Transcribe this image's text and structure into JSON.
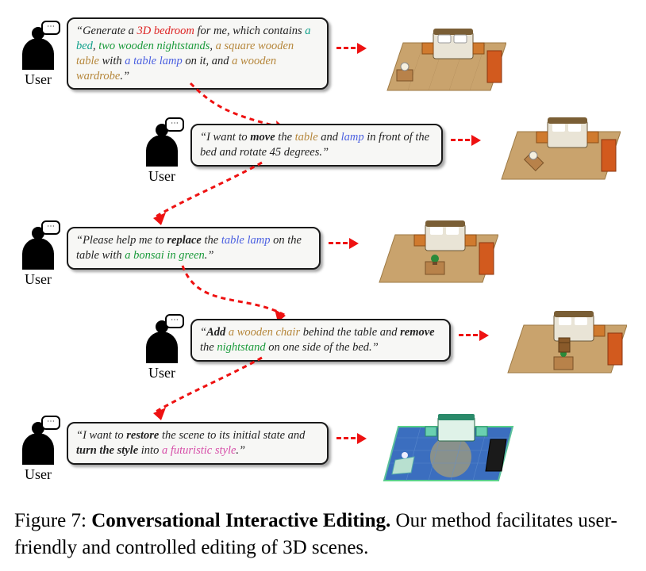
{
  "colors": {
    "red": "#d22",
    "teal": "#0fa08a",
    "green": "#1a9a3a",
    "tan": "#b5863a",
    "blue": "#4a5fe0",
    "magenta": "#d64da8",
    "text": "#222222",
    "bubble_bg": "#f7f7f5",
    "bubble_border": "#1a1a1a",
    "arrow": "#ee1111",
    "floor_wood": "#c7a06a",
    "floor_future": "#3b6ebf"
  },
  "steps": [
    {
      "user_label": "User",
      "quote_open": "“",
      "quote_close": "”",
      "spans": [
        {
          "t": "Generate a ",
          "c": "text"
        },
        {
          "t": "3D bedroom",
          "c": "red"
        },
        {
          "t": " for me, which contains ",
          "c": "text"
        },
        {
          "t": "a bed",
          "c": "teal"
        },
        {
          "t": ", ",
          "c": "text"
        },
        {
          "t": "two wooden nightstands",
          "c": "green"
        },
        {
          "t": ", ",
          "c": "text"
        },
        {
          "t": "a square wooden table",
          "c": "tan"
        },
        {
          "t": " with ",
          "c": "text"
        },
        {
          "t": "a table lamp",
          "c": "blue"
        },
        {
          "t": " on it, and ",
          "c": "text"
        },
        {
          "t": "a wooden wardrobe",
          "c": "tan"
        },
        {
          "t": ".",
          "c": "text"
        }
      ]
    },
    {
      "user_label": "User",
      "quote_open": "“",
      "quote_close": "”",
      "spans": [
        {
          "t": "I want to ",
          "c": "text"
        },
        {
          "t": "move",
          "c": "text",
          "b": true
        },
        {
          "t": " the ",
          "c": "text"
        },
        {
          "t": "table",
          "c": "tan"
        },
        {
          "t": " and ",
          "c": "text"
        },
        {
          "t": "lamp",
          "c": "blue"
        },
        {
          "t": " in front of the bed and rotate 45 degrees.",
          "c": "text"
        }
      ]
    },
    {
      "user_label": "User",
      "quote_open": "“",
      "quote_close": "”",
      "spans": [
        {
          "t": "Please help me to ",
          "c": "text"
        },
        {
          "t": "replace",
          "c": "text",
          "b": true
        },
        {
          "t": " the ",
          "c": "text"
        },
        {
          "t": "table lamp",
          "c": "blue"
        },
        {
          "t": " on the table with ",
          "c": "text"
        },
        {
          "t": "a bonsai in green",
          "c": "green"
        },
        {
          "t": ".",
          "c": "text"
        }
      ]
    },
    {
      "user_label": "User",
      "quote_open": "“",
      "quote_close": "”",
      "spans": [
        {
          "t": "Add",
          "c": "text",
          "b": true
        },
        {
          "t": " ",
          "c": "text"
        },
        {
          "t": "a wooden chair",
          "c": "tan"
        },
        {
          "t": " behind the table and ",
          "c": "text"
        },
        {
          "t": "remove",
          "c": "text",
          "b": true
        },
        {
          "t": " the ",
          "c": "text"
        },
        {
          "t": "nightstand",
          "c": "green"
        },
        {
          "t": " on one side of the bed.",
          "c": "text"
        }
      ]
    },
    {
      "user_label": "User",
      "quote_open": "“",
      "quote_close": "”",
      "spans": [
        {
          "t": "I want to ",
          "c": "text"
        },
        {
          "t": "restore",
          "c": "text",
          "b": true
        },
        {
          "t": " the scene to its initial state and ",
          "c": "text"
        },
        {
          "t": "turn the style",
          "c": "text",
          "b": true
        },
        {
          "t": " into ",
          "c": "text"
        },
        {
          "t": "a futuristic style",
          "c": "magenta"
        },
        {
          "t": ".",
          "c": "text"
        }
      ]
    }
  ],
  "caption": {
    "prefix": "Figure 7: ",
    "title": "Conversational Interactive Editing.",
    "rest": " Our method facilitates user-friendly and controlled editing of 3D scenes."
  }
}
